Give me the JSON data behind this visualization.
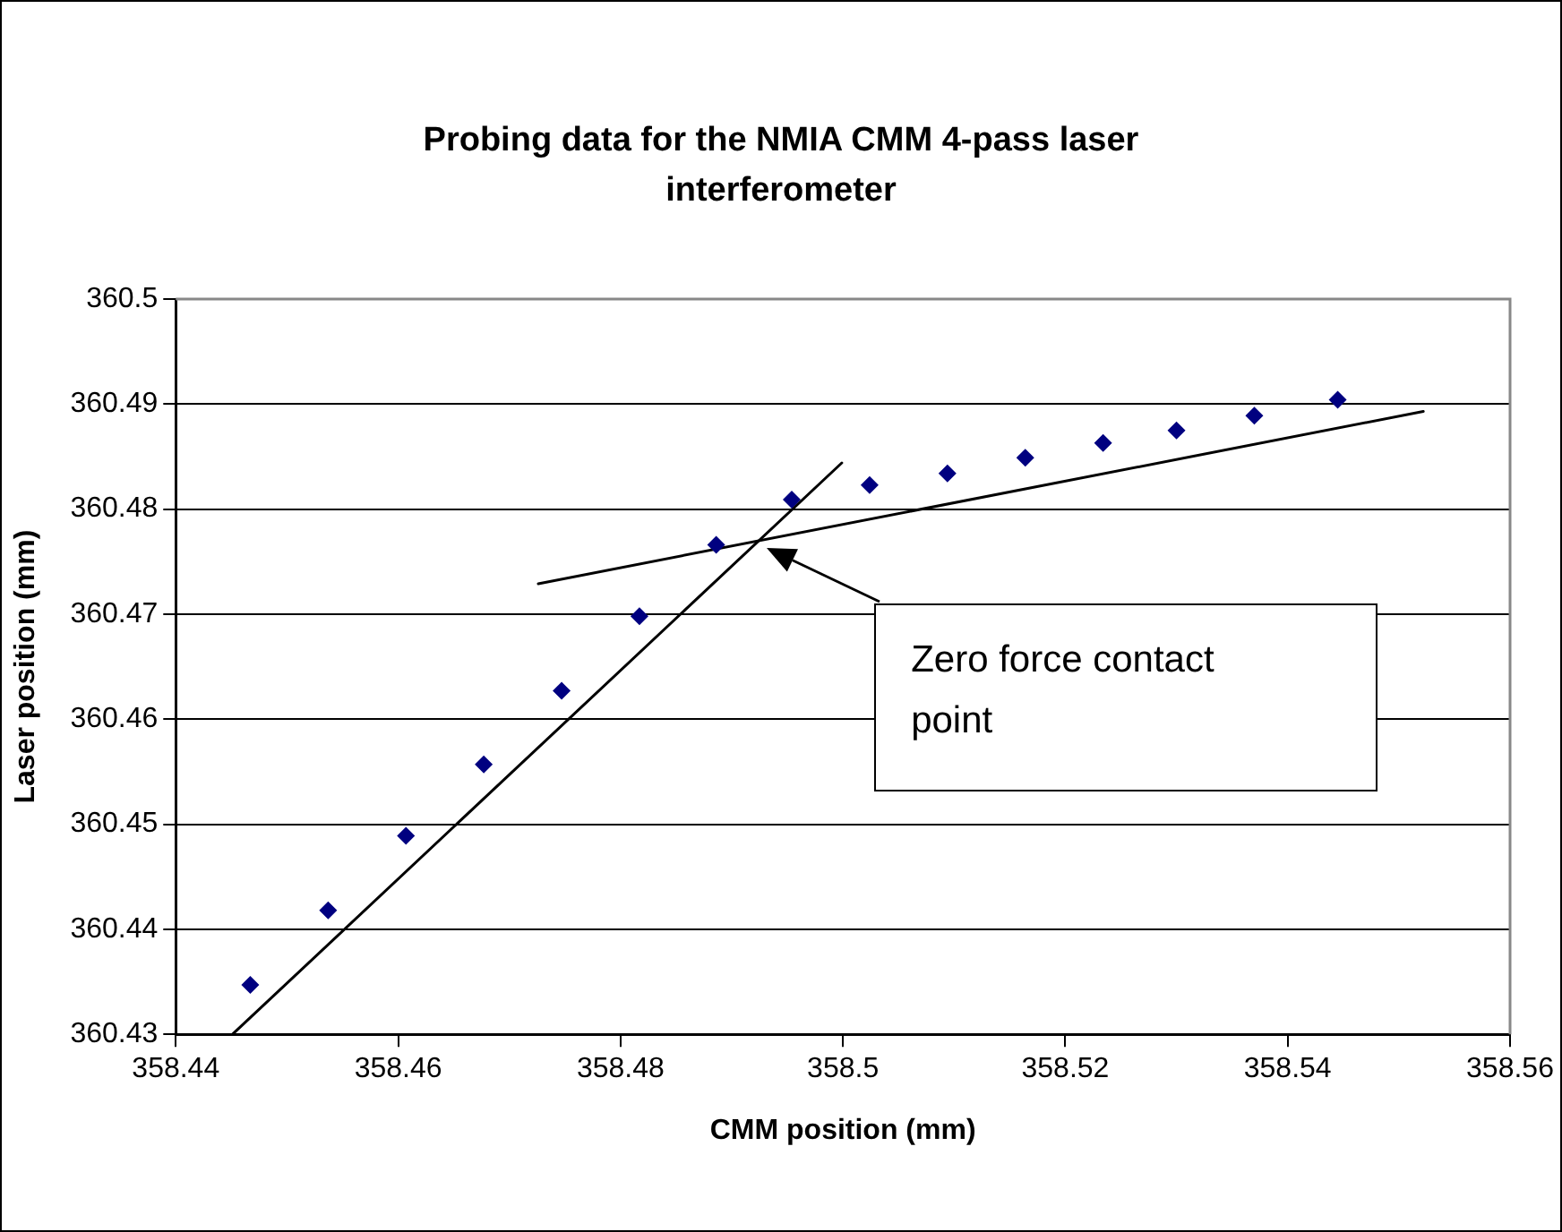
{
  "chart_data": {
    "type": "scatter",
    "title": "Probing data for the NMIA CMM 4-pass laser interferometer",
    "xlabel": "CMM position (mm)",
    "ylabel": "Laser position (mm)",
    "xlim": [
      358.44,
      358.56
    ],
    "xticks": [
      358.44,
      358.46,
      358.48,
      358.5,
      358.52,
      358.54,
      358.56
    ],
    "ylim": [
      360.43,
      360.5
    ],
    "yticks": [
      360.43,
      360.44,
      360.45,
      360.46,
      360.47,
      360.48,
      360.49,
      360.5
    ],
    "grid": "y",
    "legend": false,
    "marker": "diamond",
    "series": [
      {
        "color": "#000080",
        "x": [
          358.4467,
          358.4537,
          358.4607,
          358.4677,
          358.4747,
          358.4817,
          358.4886,
          358.4954,
          358.5024,
          358.5094,
          358.5164,
          358.5234,
          358.53,
          358.537,
          358.5445
        ],
        "values": [
          360.4347,
          360.4418,
          360.4489,
          360.4557,
          360.4627,
          360.4698,
          360.4766,
          360.4809,
          360.4823,
          360.4834,
          360.4849,
          360.4863,
          360.4875,
          360.4889,
          360.4904
        ]
      },
      {
        "type": "line",
        "color": "#000000",
        "marker": "none",
        "x": [
          358.4451,
          358.4999
        ],
        "values": [
          360.43,
          360.4844
        ]
      },
      {
        "type": "line",
        "color": "#000000",
        "marker": "none",
        "x": [
          358.4726,
          358.5522
        ],
        "values": [
          360.4729,
          360.4893
        ]
      }
    ],
    "annotations": [
      "Zero force contact point"
    ]
  }
}
